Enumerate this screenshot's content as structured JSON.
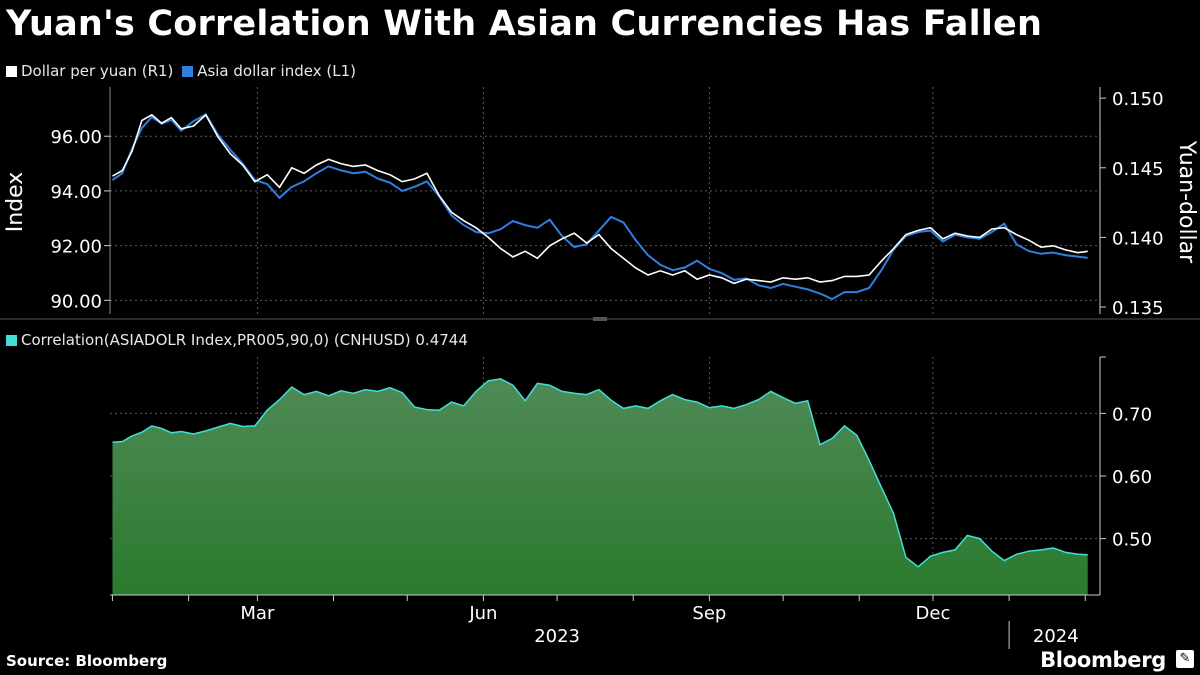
{
  "title": "Yuan's Correlation With Asian Currencies Has Fallen",
  "source": "Source: Bloomberg",
  "brand": "Bloomberg",
  "brand_icon": "bloomberg-terminal-icon",
  "colors": {
    "background": "#000000",
    "dollar_per_yuan": "#ffffff",
    "asia_dollar_index": "#2f7fe0",
    "correlation_line": "#3fe0d8",
    "correlation_fill_top": "#4f8a56",
    "correlation_fill_bottom": "#2a7a2e"
  },
  "chart_data": [
    {
      "type": "line",
      "legend_position": "top-left",
      "grid": true,
      "ylabel_left": "Index",
      "ylabel_right": "Yuan-dollar",
      "left_axis": {
        "ylim": [
          89.5,
          97.8
        ],
        "ticks": [
          90.0,
          92.0,
          94.0,
          96.0
        ],
        "tick_labels": [
          "90.00",
          "92.00",
          "94.00",
          "96.00"
        ]
      },
      "right_axis": {
        "ylim": [
          0.1345,
          0.1508
        ],
        "ticks": [
          0.135,
          0.14,
          0.145,
          0.15
        ],
        "tick_labels": [
          "0.135",
          "0.140",
          "0.145",
          "0.150"
        ]
      },
      "series": [
        {
          "name": "Dollar per yuan (R1)",
          "axis": "right",
          "x": [
            "2023-01-01",
            "2023-01-05",
            "2023-01-09",
            "2023-01-13",
            "2023-01-17",
            "2023-01-21",
            "2023-01-25",
            "2023-01-29",
            "2023-02-03",
            "2023-02-08",
            "2023-02-13",
            "2023-02-18",
            "2023-02-23",
            "2023-02-28",
            "2023-03-05",
            "2023-03-10",
            "2023-03-15",
            "2023-03-20",
            "2023-03-25",
            "2023-03-30",
            "2023-04-04",
            "2023-04-09",
            "2023-04-14",
            "2023-04-19",
            "2023-04-24",
            "2023-04-29",
            "2023-05-04",
            "2023-05-09",
            "2023-05-14",
            "2023-05-19",
            "2023-05-24",
            "2023-05-29",
            "2023-06-03",
            "2023-06-08",
            "2023-06-13",
            "2023-06-18",
            "2023-06-23",
            "2023-06-28",
            "2023-07-03",
            "2023-07-08",
            "2023-07-13",
            "2023-07-18",
            "2023-07-23",
            "2023-07-28",
            "2023-08-02",
            "2023-08-07",
            "2023-08-12",
            "2023-08-17",
            "2023-08-22",
            "2023-08-27",
            "2023-09-01",
            "2023-09-06",
            "2023-09-11",
            "2023-09-16",
            "2023-09-21",
            "2023-09-26",
            "2023-10-01",
            "2023-10-06",
            "2023-10-11",
            "2023-10-16",
            "2023-10-21",
            "2023-10-26",
            "2023-10-31",
            "2023-11-05",
            "2023-11-10",
            "2023-11-15",
            "2023-11-20",
            "2023-11-25",
            "2023-11-30",
            "2023-12-05",
            "2023-12-10",
            "2023-12-15",
            "2023-12-20",
            "2023-12-25",
            "2023-12-30",
            "2024-01-04",
            "2024-01-09",
            "2024-01-14",
            "2024-01-19",
            "2024-01-24",
            "2024-01-29",
            "2024-02-02"
          ],
          "values": [
            0.1444,
            0.1448,
            0.1462,
            0.1484,
            0.1488,
            0.1482,
            0.1486,
            0.1478,
            0.148,
            0.1488,
            0.1472,
            0.146,
            0.1452,
            0.144,
            0.1445,
            0.1436,
            0.145,
            0.1446,
            0.1452,
            0.1456,
            0.1453,
            0.1451,
            0.1452,
            0.1448,
            0.1445,
            0.144,
            0.1442,
            0.1446,
            0.143,
            0.1418,
            0.1412,
            0.1407,
            0.14,
            0.1392,
            0.1386,
            0.139,
            0.1385,
            0.1394,
            0.1399,
            0.1403,
            0.1396,
            0.1402,
            0.1392,
            0.1385,
            0.1378,
            0.1373,
            0.1376,
            0.1373,
            0.1376,
            0.137,
            0.1373,
            0.1371,
            0.1367,
            0.137,
            0.1369,
            0.1368,
            0.1371,
            0.137,
            0.1371,
            0.1368,
            0.1369,
            0.1372,
            0.1372,
            0.1373,
            0.1383,
            0.1392,
            0.1402,
            0.1405,
            0.1407,
            0.1399,
            0.1403,
            0.1401,
            0.14,
            0.1406,
            0.1407,
            0.1402,
            0.1398,
            0.1393,
            0.1394,
            0.1391,
            0.1389,
            0.139
          ]
        },
        {
          "name": "Asia dollar index (L1)",
          "axis": "left",
          "x": [
            "2023-01-01",
            "2023-01-05",
            "2023-01-09",
            "2023-01-13",
            "2023-01-17",
            "2023-01-21",
            "2023-01-25",
            "2023-01-29",
            "2023-02-03",
            "2023-02-08",
            "2023-02-13",
            "2023-02-18",
            "2023-02-23",
            "2023-02-28",
            "2023-03-05",
            "2023-03-10",
            "2023-03-15",
            "2023-03-20",
            "2023-03-25",
            "2023-03-30",
            "2023-04-04",
            "2023-04-09",
            "2023-04-14",
            "2023-04-19",
            "2023-04-24",
            "2023-04-29",
            "2023-05-04",
            "2023-05-09",
            "2023-05-14",
            "2023-05-19",
            "2023-05-24",
            "2023-05-29",
            "2023-06-03",
            "2023-06-08",
            "2023-06-13",
            "2023-06-18",
            "2023-06-23",
            "2023-06-28",
            "2023-07-03",
            "2023-07-08",
            "2023-07-13",
            "2023-07-18",
            "2023-07-23",
            "2023-07-28",
            "2023-08-02",
            "2023-08-07",
            "2023-08-12",
            "2023-08-17",
            "2023-08-22",
            "2023-08-27",
            "2023-09-01",
            "2023-09-06",
            "2023-09-11",
            "2023-09-16",
            "2023-09-21",
            "2023-09-26",
            "2023-10-01",
            "2023-10-06",
            "2023-10-11",
            "2023-10-16",
            "2023-10-21",
            "2023-10-26",
            "2023-10-31",
            "2023-11-05",
            "2023-11-10",
            "2023-11-15",
            "2023-11-20",
            "2023-11-25",
            "2023-11-30",
            "2023-12-05",
            "2023-12-10",
            "2023-12-15",
            "2023-12-20",
            "2023-12-25",
            "2023-12-30",
            "2024-01-04",
            "2024-01-09",
            "2024-01-14",
            "2024-01-19",
            "2024-01-24",
            "2024-01-29",
            "2024-02-02"
          ],
          "values": [
            94.4,
            94.65,
            95.55,
            96.3,
            96.7,
            96.45,
            96.6,
            96.2,
            96.55,
            96.8,
            96.05,
            95.5,
            95.0,
            94.4,
            94.25,
            93.75,
            94.15,
            94.35,
            94.65,
            94.9,
            94.75,
            94.65,
            94.7,
            94.45,
            94.3,
            94.0,
            94.15,
            94.35,
            93.8,
            93.1,
            92.75,
            92.5,
            92.45,
            92.6,
            92.9,
            92.75,
            92.65,
            92.95,
            92.35,
            91.95,
            92.05,
            92.55,
            93.05,
            92.85,
            92.2,
            91.65,
            91.3,
            91.1,
            91.2,
            91.45,
            91.15,
            91.0,
            90.75,
            90.8,
            90.55,
            90.45,
            90.6,
            90.5,
            90.4,
            90.25,
            90.05,
            90.3,
            90.3,
            90.45,
            91.1,
            91.85,
            92.35,
            92.5,
            92.55,
            92.15,
            92.4,
            92.3,
            92.25,
            92.5,
            92.8,
            92.05,
            91.8,
            91.7,
            91.75,
            91.65,
            91.6,
            91.55
          ]
        }
      ]
    },
    {
      "type": "area",
      "legend_position": "top-left",
      "grid": true,
      "right_axis": {
        "ylim": [
          0.41,
          0.79
        ],
        "ticks": [
          0.5,
          0.6,
          0.7
        ],
        "tick_labels": [
          "0.50",
          "0.60",
          "0.70"
        ]
      },
      "series": [
        {
          "name": "Correlation(ASIADOLR Index,PR005,90,0) (CNHUSD) 0.4744",
          "axis": "right",
          "x": [
            "2023-01-01",
            "2023-01-05",
            "2023-01-09",
            "2023-01-13",
            "2023-01-17",
            "2023-01-21",
            "2023-01-25",
            "2023-01-29",
            "2023-02-03",
            "2023-02-08",
            "2023-02-13",
            "2023-02-18",
            "2023-02-23",
            "2023-02-28",
            "2023-03-05",
            "2023-03-10",
            "2023-03-15",
            "2023-03-20",
            "2023-03-25",
            "2023-03-30",
            "2023-04-04",
            "2023-04-09",
            "2023-04-14",
            "2023-04-19",
            "2023-04-24",
            "2023-04-29",
            "2023-05-04",
            "2023-05-09",
            "2023-05-14",
            "2023-05-19",
            "2023-05-24",
            "2023-05-29",
            "2023-06-03",
            "2023-06-08",
            "2023-06-13",
            "2023-06-18",
            "2023-06-23",
            "2023-06-28",
            "2023-07-03",
            "2023-07-08",
            "2023-07-13",
            "2023-07-18",
            "2023-07-23",
            "2023-07-28",
            "2023-08-02",
            "2023-08-07",
            "2023-08-12",
            "2023-08-17",
            "2023-08-22",
            "2023-08-27",
            "2023-09-01",
            "2023-09-06",
            "2023-09-11",
            "2023-09-16",
            "2023-09-21",
            "2023-09-26",
            "2023-10-01",
            "2023-10-06",
            "2023-10-11",
            "2023-10-16",
            "2023-10-21",
            "2023-10-26",
            "2023-10-31",
            "2023-11-05",
            "2023-11-10",
            "2023-11-15",
            "2023-11-20",
            "2023-11-25",
            "2023-11-30",
            "2023-12-05",
            "2023-12-10",
            "2023-12-15",
            "2023-12-20",
            "2023-12-25",
            "2023-12-30",
            "2024-01-04",
            "2024-01-09",
            "2024-01-14",
            "2024-01-19",
            "2024-01-24",
            "2024-01-29",
            "2024-02-02"
          ],
          "values": [
            0.654,
            0.655,
            0.664,
            0.67,
            0.68,
            0.676,
            0.669,
            0.671,
            0.667,
            0.672,
            0.678,
            0.684,
            0.679,
            0.68,
            0.705,
            0.722,
            0.742,
            0.73,
            0.735,
            0.728,
            0.736,
            0.732,
            0.738,
            0.735,
            0.741,
            0.733,
            0.71,
            0.706,
            0.705,
            0.718,
            0.712,
            0.735,
            0.752,
            0.755,
            0.745,
            0.72,
            0.748,
            0.745,
            0.735,
            0.732,
            0.73,
            0.738,
            0.721,
            0.708,
            0.712,
            0.708,
            0.72,
            0.73,
            0.722,
            0.718,
            0.709,
            0.712,
            0.708,
            0.714,
            0.722,
            0.735,
            0.725,
            0.716,
            0.72,
            0.65,
            0.66,
            0.68,
            0.665,
            0.625,
            0.582,
            0.54,
            0.47,
            0.455,
            0.472,
            0.478,
            0.482,
            0.505,
            0.5,
            0.48,
            0.465,
            0.475,
            0.48,
            0.482,
            0.485,
            0.478,
            0.475,
            0.4744
          ]
        }
      ]
    }
  ],
  "x_axis": {
    "month_labels": [
      {
        "date": "2023-03-01",
        "label": "Mar"
      },
      {
        "date": "2023-06-01",
        "label": "Jun"
      },
      {
        "date": "2023-09-01",
        "label": "Sep"
      },
      {
        "date": "2023-12-01",
        "label": "Dec"
      }
    ],
    "year_labels": [
      {
        "date": "2023-07-01",
        "label": "2023"
      },
      {
        "date": "2024-01-20",
        "label": "2024"
      }
    ],
    "minor_tick_dates": [
      "2023-01-01",
      "2023-02-01",
      "2023-03-01",
      "2023-04-01",
      "2023-05-01",
      "2023-06-01",
      "2023-07-01",
      "2023-08-01",
      "2023-09-01",
      "2023-10-01",
      "2023-11-01",
      "2023-12-01",
      "2024-01-01",
      "2024-02-01"
    ],
    "range": [
      "2022-12-31",
      "2024-02-07"
    ]
  }
}
